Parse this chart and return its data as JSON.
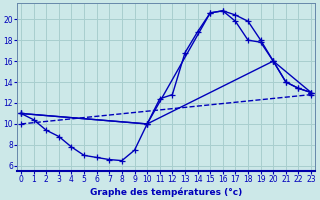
{
  "xlabel": "Graphe des températures (°c)",
  "background_color": "#cce8e8",
  "grid_color": "#a8cece",
  "line_color": "#0000bb",
  "yticks": [
    6,
    8,
    10,
    12,
    14,
    16,
    18,
    20
  ],
  "xticks": [
    0,
    1,
    2,
    3,
    4,
    5,
    6,
    7,
    8,
    9,
    10,
    11,
    12,
    13,
    14,
    15,
    16,
    17,
    18,
    19,
    20,
    21,
    22,
    23
  ],
  "xlim": [
    -0.3,
    23.3
  ],
  "ylim": [
    5.5,
    21.5
  ],
  "series1_x": [
    0,
    1,
    2,
    3,
    4,
    5,
    6,
    7,
    8,
    9,
    10,
    11,
    12,
    13,
    14,
    15,
    16,
    17,
    18,
    19,
    20,
    21,
    22,
    23
  ],
  "series1_y": [
    11.0,
    10.4,
    9.4,
    8.8,
    7.8,
    7.0,
    6.8,
    6.6,
    6.5,
    7.5,
    10.0,
    12.4,
    12.8,
    16.8,
    18.8,
    20.6,
    20.8,
    20.4,
    19.8,
    18.0,
    16.0,
    14.0,
    13.4,
    13.0
  ],
  "series2_x": [
    0,
    10,
    15,
    16,
    17,
    18,
    19,
    20,
    21,
    22,
    23
  ],
  "series2_y": [
    11.0,
    10.0,
    20.6,
    20.8,
    19.8,
    18.0,
    17.8,
    16.0,
    14.0,
    13.4,
    13.0
  ],
  "series3_x": [
    0,
    10,
    20,
    23
  ],
  "series3_y": [
    11.0,
    10.0,
    16.0,
    13.0
  ],
  "series4_x": [
    0,
    23
  ],
  "series4_y": [
    10.0,
    12.8
  ]
}
